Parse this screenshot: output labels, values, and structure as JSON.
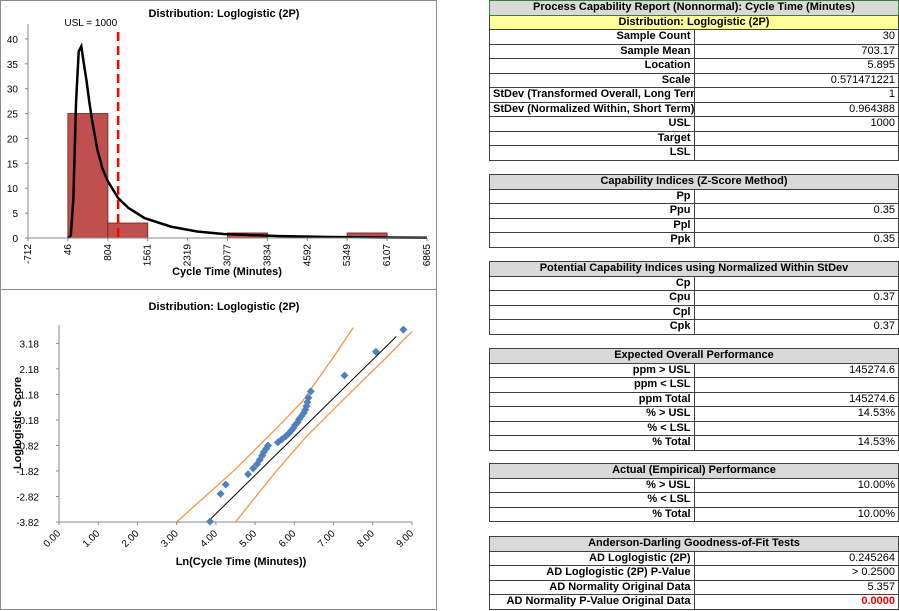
{
  "chart_data": [
    {
      "type": "bar",
      "title": "Distribution: Loglogistic (2P)",
      "xlabel": "Cycle Time (Minutes)",
      "ylabel": "",
      "xticks": [
        "-712",
        "46",
        "804",
        "1561",
        "2319",
        "3077",
        "3834",
        "4592",
        "5349",
        "6107",
        "6865"
      ],
      "yticks": [
        "0",
        "5",
        "10",
        "15",
        "20",
        "25",
        "30",
        "35",
        "40"
      ],
      "xlim": [
        -712,
        6865
      ],
      "ylim": [
        0,
        43
      ],
      "bins": [
        {
          "start": 46,
          "end": 804,
          "count": 25
        },
        {
          "start": 804,
          "end": 1561,
          "count": 3
        },
        {
          "start": 1561,
          "end": 2319,
          "count": 0
        },
        {
          "start": 2319,
          "end": 3077,
          "count": 0
        },
        {
          "start": 3077,
          "end": 3834,
          "count": 1
        },
        {
          "start": 3834,
          "end": 4592,
          "count": 0
        },
        {
          "start": 4592,
          "end": 5349,
          "count": 0
        },
        {
          "start": 5349,
          "end": 6107,
          "count": 1
        }
      ],
      "curve": {
        "x": [
          50,
          100,
          150,
          200,
          250,
          300,
          350,
          400,
          450,
          500,
          600,
          700,
          800,
          1000,
          1200,
          1500,
          2000,
          2500,
          3000,
          4000,
          5000,
          6000,
          6865
        ],
        "y": [
          0,
          0.5,
          8,
          27,
          37.5,
          38.5,
          35,
          31.5,
          27.5,
          24,
          18,
          14,
          11.5,
          8,
          6,
          4,
          2.3,
          1.3,
          0.8,
          0.4,
          0.2,
          0.1,
          0.05
        ]
      },
      "usl": {
        "value": 1000,
        "label": "USL = 1000"
      },
      "bar_color": "#c0504d",
      "curve_color": "#000000",
      "usl_color": "#ff0000"
    },
    {
      "type": "scatter",
      "title": "Distribution: Loglogistic (2P)",
      "xlabel": "Ln(Cycle Time (Minutes))",
      "ylabel": "Loglogistic Score",
      "xticks": [
        "0.00",
        "1.00",
        "2.00",
        "3.00",
        "4.00",
        "5.00",
        "6.00",
        "7.00",
        "8.00",
        "9.00"
      ],
      "yticks": [
        "-3.82",
        "-2.82",
        "-1.82",
        "-0.82",
        "0.18",
        "1.18",
        "2.18",
        "3.18"
      ],
      "xlim": [
        0,
        9
      ],
      "ylim": [
        -3.82,
        3.9
      ],
      "points": {
        "x": [
          3.85,
          4.12,
          4.25,
          4.82,
          4.95,
          5.05,
          5.12,
          5.18,
          5.22,
          5.28,
          5.33,
          5.58,
          5.68,
          5.78,
          5.86,
          5.92,
          5.98,
          6.02,
          6.08,
          6.12,
          6.18,
          6.24,
          6.28,
          6.31,
          6.33,
          6.36,
          6.42,
          7.28,
          8.08,
          8.78
        ],
        "y": [
          -3.8,
          -2.72,
          -2.35,
          -1.95,
          -1.72,
          -1.55,
          -1.38,
          -1.22,
          -1.08,
          -0.95,
          -0.82,
          -0.7,
          -0.58,
          -0.46,
          -0.35,
          -0.24,
          -0.13,
          -0.02,
          0.08,
          0.2,
          0.32,
          0.45,
          0.58,
          0.72,
          0.88,
          1.05,
          1.3,
          1.92,
          2.85,
          3.72
        ]
      },
      "fit_line": {
        "x": [
          3.8,
          8.6
        ],
        "y": [
          -3.8,
          3.45
        ]
      },
      "band_upper": {
        "x": [
          3.0,
          4.5,
          5.5,
          6.2,
          7.0,
          7.5
        ],
        "y": [
          -3.82,
          -1.75,
          -0.22,
          0.9,
          2.65,
          3.8
        ]
      },
      "band_lower": {
        "x": [
          4.5,
          5.5,
          6.3,
          7.3,
          8.3,
          9.0
        ],
        "y": [
          -3.82,
          -1.9,
          -0.48,
          1.05,
          2.55,
          3.65
        ]
      },
      "point_color": "#4f81bd",
      "band_color": "#f79646",
      "line_color": "#000000"
    }
  ],
  "report": {
    "title": "Process Capability Report (Nonnormal): Cycle Time (Minutes)",
    "distribution": "Distribution: Loglogistic (2P)",
    "summary_rows": [
      {
        "label": "Sample Count",
        "value": "30"
      },
      {
        "label": "Sample Mean",
        "value": "703.17"
      },
      {
        "label": "Location",
        "value": "5.895"
      },
      {
        "label": "Scale",
        "value": "0.571471221"
      },
      {
        "label": "StDev (Transformed Overall, Long Term)",
        "value": "1"
      },
      {
        "label": "StDev (Normalized Within, Short Term)",
        "value": "0.964388"
      },
      {
        "label": "USL",
        "value": "1000"
      },
      {
        "label": "Target",
        "value": ""
      },
      {
        "label": "LSL",
        "value": ""
      }
    ],
    "capability": {
      "title": "Capability Indices (Z-Score Method)",
      "rows": [
        {
          "label": "Pp",
          "value": ""
        },
        {
          "label": "Ppu",
          "value": "0.35"
        },
        {
          "label": "Ppl",
          "value": ""
        },
        {
          "label": "Ppk",
          "value": "0.35"
        }
      ]
    },
    "potential": {
      "title": "Potential Capability Indices using Normalized Within StDev",
      "rows": [
        {
          "label": "Cp",
          "value": ""
        },
        {
          "label": "Cpu",
          "value": "0.37"
        },
        {
          "label": "Cpl",
          "value": ""
        },
        {
          "label": "Cpk",
          "value": "0.37"
        }
      ]
    },
    "expected": {
      "title": "Expected Overall Performance",
      "rows": [
        {
          "label": "ppm > USL",
          "value": "145274.6"
        },
        {
          "label": "ppm < LSL",
          "value": ""
        },
        {
          "label": "ppm Total",
          "value": "145274.6"
        },
        {
          "label": "% > USL",
          "value": "14.53%"
        },
        {
          "label": "% < LSL",
          "value": ""
        },
        {
          "label": "% Total",
          "value": "14.53%"
        }
      ]
    },
    "actual": {
      "title": "Actual (Empirical) Performance",
      "rows": [
        {
          "label": "% > USL",
          "value": "10.00%"
        },
        {
          "label": "% < LSL",
          "value": ""
        },
        {
          "label": "% Total",
          "value": "10.00%"
        }
      ]
    },
    "ad": {
      "title": "Anderson-Darling Goodness-of-Fit Tests",
      "rows": [
        {
          "label": "AD Loglogistic (2P)",
          "value": "0.245264"
        },
        {
          "label": "AD Loglogistic (2P) P-Value",
          "value": "> 0.2500"
        },
        {
          "label": "AD Normality Original Data",
          "value": "5.357"
        },
        {
          "label": "AD Normality P-Value Original Data",
          "value": "0.0000",
          "alert": true
        }
      ]
    }
  }
}
